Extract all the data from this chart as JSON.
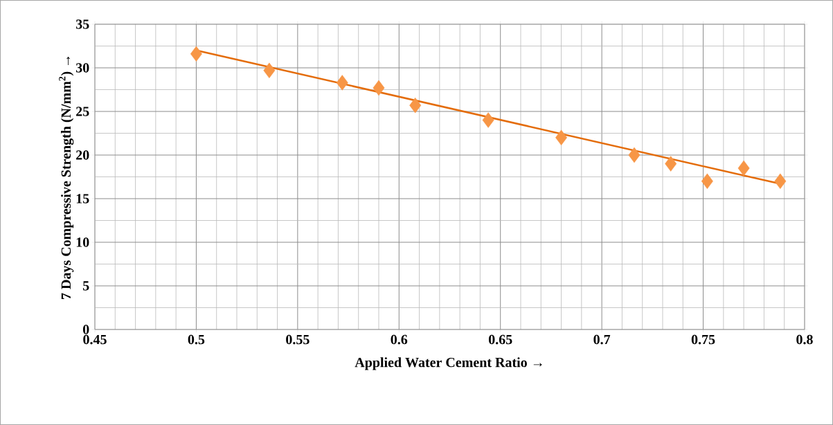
{
  "chart_data": {
    "type": "scatter",
    "xlabel": "Applied Water Cement Ratio →",
    "ylabel": "7 Days Compressive Strength (N/mm$^{2}$) →",
    "series": [
      {
        "color": "#f79646",
        "marker": "diamond",
        "x": [
          0.5,
          0.536,
          0.572,
          0.59,
          0.608,
          0.644,
          0.68,
          0.716,
          0.734,
          0.752,
          0.77,
          0.788
        ],
        "values": [
          31.6,
          29.7,
          28.3,
          27.7,
          25.7,
          24.0,
          22.0,
          20.0,
          19.0,
          17.0,
          18.5,
          17.0
        ]
      },
      {
        "type": "line",
        "color": "#e46c0a",
        "marker": "none",
        "x": [
          0.5,
          0.788
        ],
        "values": [
          32.0,
          16.7
        ]
      }
    ],
    "xlim": [
      0.45,
      0.8
    ],
    "xticks": [
      0.45,
      0.5,
      0.55,
      0.6,
      0.65,
      0.7,
      0.75,
      0.8
    ],
    "ylim": [
      0,
      35
    ],
    "yticks": [
      0,
      5,
      10,
      15,
      20,
      25,
      30,
      35
    ],
    "grid": true
  }
}
